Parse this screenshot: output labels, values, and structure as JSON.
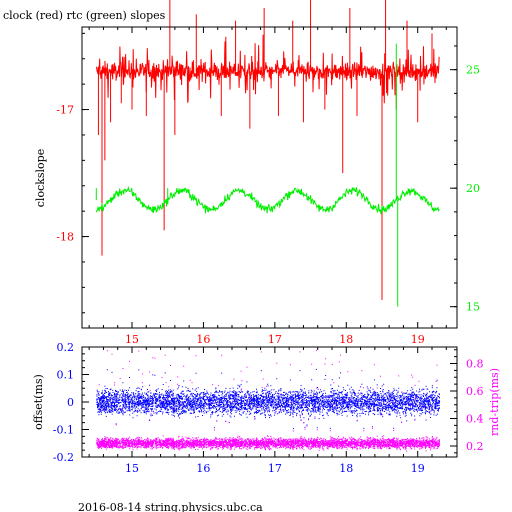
{
  "title": "clock (red) rtc (green) slopes",
  "footer": "2016-08-14 string.physics.ubc.ca",
  "colors": {
    "red": "#ff0000",
    "green": "#00ee00",
    "blue": "#0000ff",
    "magenta": "#ff00ff",
    "black": "#000000"
  },
  "chart_data": [
    {
      "type": "line",
      "title": "clock (red) rtc (green) slopes",
      "xlabel": "",
      "ylabel": "clockslope",
      "xlim": [
        14.3,
        19.55
      ],
      "ylim": [
        -18.72,
        -16.35
      ],
      "x_ticks": [
        15,
        16,
        17,
        18,
        19
      ],
      "x_tick_labels": [
        "15",
        "16",
        "17",
        "18",
        "19"
      ],
      "y_ticks": [
        -16,
        -17,
        -18
      ],
      "y_tick_labels": [
        "-16",
        "-17",
        "-18"
      ],
      "y2label": "",
      "y2lim": [
        14.1,
        26.8
      ],
      "y2_ticks": [
        15,
        20,
        25
      ],
      "y2_tick_labels": [
        "15",
        "20",
        "25"
      ],
      "grid": false,
      "series": [
        {
          "axis": "left",
          "color": "red",
          "x_range": [
            14.5,
            19.3
          ],
          "baseline": -16.7,
          "noise": 0.05,
          "spikes": [
            [
              14.53,
              -17.2
            ],
            [
              14.58,
              -18.15
            ],
            [
              14.62,
              -17.4
            ],
            [
              14.7,
              -17.1
            ],
            [
              14.85,
              -16.95
            ],
            [
              15.0,
              -17.0
            ],
            [
              15.2,
              -17.05
            ],
            [
              15.45,
              -17.95
            ],
            [
              15.53,
              -16.05
            ],
            [
              15.6,
              -17.2
            ],
            [
              15.9,
              -16.25
            ],
            [
              16.25,
              -17.05
            ],
            [
              16.45,
              -16.3
            ],
            [
              16.65,
              -17.15
            ],
            [
              16.85,
              -16.2
            ],
            [
              17.05,
              -17.05
            ],
            [
              17.25,
              -16.3
            ],
            [
              17.4,
              -17.1
            ],
            [
              17.5,
              -16.05
            ],
            [
              17.7,
              -17.0
            ],
            [
              17.95,
              -17.5
            ],
            [
              18.05,
              -16.2
            ],
            [
              18.15,
              -17.05
            ],
            [
              18.5,
              -18.5
            ],
            [
              18.55,
              -16.05
            ],
            [
              18.7,
              -17.0
            ],
            [
              18.85,
              -16.3
            ],
            [
              19.0,
              -17.1
            ],
            [
              19.2,
              -16.4
            ]
          ]
        },
        {
          "axis": "right",
          "color": "green",
          "x_range": [
            14.5,
            19.3
          ],
          "baseline": 19.5,
          "amplitude": 0.4,
          "period": 0.8,
          "phase": 14.7,
          "noise": 0.12,
          "spikes": [
            [
              18.7,
              26.1
            ],
            [
              18.72,
              15.0
            ],
            [
              14.5,
              20.0
            ],
            [
              15.5,
              20.0
            ]
          ]
        }
      ]
    },
    {
      "type": "scatter",
      "xlabel": "",
      "ylabel": "offset(ms)",
      "xlim": [
        14.3,
        19.55
      ],
      "ylim": [
        -0.2,
        0.2
      ],
      "x_ticks": [
        15,
        16,
        17,
        18,
        19
      ],
      "x_tick_labels": [
        "15",
        "16",
        "17",
        "18",
        "19"
      ],
      "y_ticks": [
        0.2,
        0.1,
        0,
        -0.1,
        -0.2
      ],
      "y_tick_labels": [
        "0.2",
        "0.1",
        "0",
        "-0.1",
        "-0.2"
      ],
      "y2label": "rnd-trip(ms)",
      "y2lim": [
        0.12,
        0.92
      ],
      "y2_ticks": [
        0.2,
        0.4,
        0.6,
        0.8
      ],
      "y2_tick_labels": [
        "0.2",
        "0.4",
        "0.6",
        "0.8"
      ],
      "grid": false,
      "series": [
        {
          "axis": "left",
          "color": "blue",
          "x_range": [
            14.5,
            19.3
          ],
          "center": 0.0,
          "spread": 0.03,
          "outlier_range": [
            -0.1,
            0.12
          ]
        },
        {
          "axis": "right",
          "color": "magenta",
          "x_range": [
            14.5,
            19.3
          ],
          "center": 0.22,
          "spread": 0.025,
          "outlier_range": [
            0.3,
            0.9
          ]
        }
      ]
    }
  ]
}
